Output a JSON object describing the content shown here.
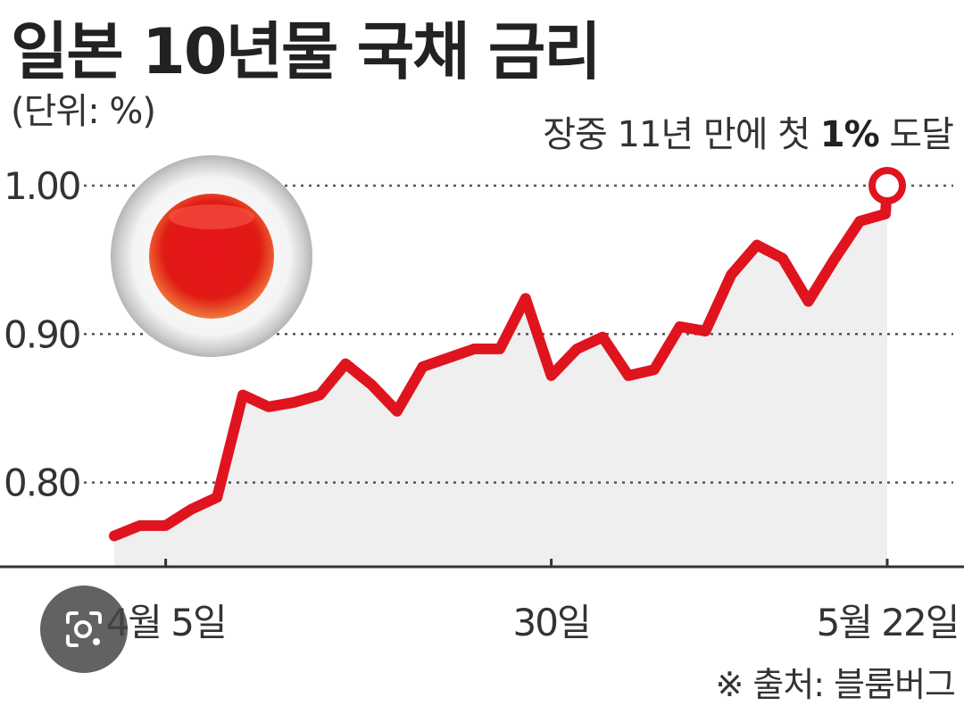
{
  "title": "일본 10년물 국채 금리",
  "unit_label": "(단위: %)",
  "annotation": {
    "prefix": "장중 11년 만에 첫 ",
    "highlight": "1%",
    "suffix": " 도달"
  },
  "source": "※ 출처: 블룸버그",
  "colors": {
    "line": "#e0141e",
    "area": "#efefef",
    "grid": "#555555",
    "axis": "#333333"
  },
  "overlay": {
    "icon": "lens-search-icon"
  },
  "chart_data": {
    "type": "line",
    "title": "일본 10년물 국채 금리",
    "ylabel": "(단위: %)",
    "ylim": [
      0.745,
      1.04
    ],
    "yticks": [
      {
        "value": 0.8,
        "label": "0.80"
      },
      {
        "value": 0.9,
        "label": "0.90"
      },
      {
        "value": 1.0,
        "label": "1.00"
      }
    ],
    "xticks": [
      {
        "x": 2,
        "label": "4월 5일"
      },
      {
        "x": 17,
        "label": "30일"
      },
      {
        "x": 30,
        "label": "5월 22일"
      }
    ],
    "grid": "dotted horizontal",
    "series": [
      {
        "x": [
          0,
          1,
          2,
          3,
          4,
          5,
          6,
          7,
          8,
          9,
          10,
          11,
          12,
          13,
          14,
          15,
          16,
          17,
          18,
          19,
          20,
          21,
          22,
          23,
          24,
          25,
          26,
          27,
          28,
          29,
          30
        ],
        "values": [
          0.764,
          0.771,
          0.771,
          0.782,
          0.79,
          0.859,
          0.851,
          0.854,
          0.859,
          0.88,
          0.866,
          0.848,
          0.878,
          0.884,
          0.89,
          0.89,
          0.924,
          0.872,
          0.89,
          0.898,
          0.872,
          0.876,
          0.905,
          0.902,
          0.94,
          0.96,
          0.951,
          0.922,
          0.95,
          0.976,
          0.981
        ],
        "end_point": {
          "x": 30,
          "value": 1.0
        }
      }
    ]
  }
}
